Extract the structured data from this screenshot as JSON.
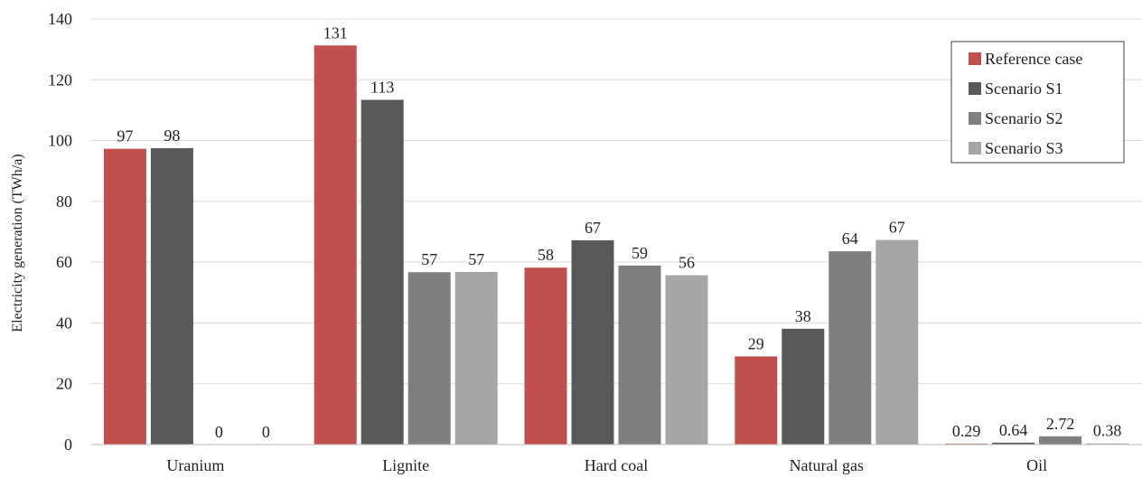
{
  "chart_data": {
    "type": "bar",
    "title": "",
    "xlabel": "",
    "ylabel": "Electricity generation (TWh/a)",
    "ylim": [
      0,
      140
    ],
    "yticks": [
      0,
      20,
      40,
      60,
      80,
      100,
      120,
      140
    ],
    "grid": true,
    "legend_position": "top-right",
    "categories": [
      "Uranium",
      "Lignite",
      "Hard coal",
      "Natural gas",
      "Oil"
    ],
    "series": [
      {
        "name": "Reference case",
        "color": "#c0504d",
        "values": [
          97.3,
          131.3,
          58.2,
          29.0,
          0.29
        ],
        "labels": [
          "97",
          "131",
          "58",
          "29",
          "0.29"
        ]
      },
      {
        "name": "Scenario S1",
        "color": "#595959",
        "values": [
          97.5,
          113.4,
          67.2,
          38.1,
          0.64
        ],
        "labels": [
          "98",
          "113",
          "67",
          "38",
          "0.64"
        ]
      },
      {
        "name": "Scenario S2",
        "color": "#7f7f7f",
        "values": [
          0,
          56.7,
          58.9,
          63.6,
          2.72
        ],
        "labels": [
          "0",
          "57",
          "59",
          "64",
          "2.72"
        ]
      },
      {
        "name": "Scenario S3",
        "color": "#a6a6a6",
        "values": [
          0,
          56.8,
          55.7,
          67.3,
          0.38
        ],
        "labels": [
          "0",
          "57",
          "56",
          "67",
          "0.38"
        ]
      }
    ]
  }
}
